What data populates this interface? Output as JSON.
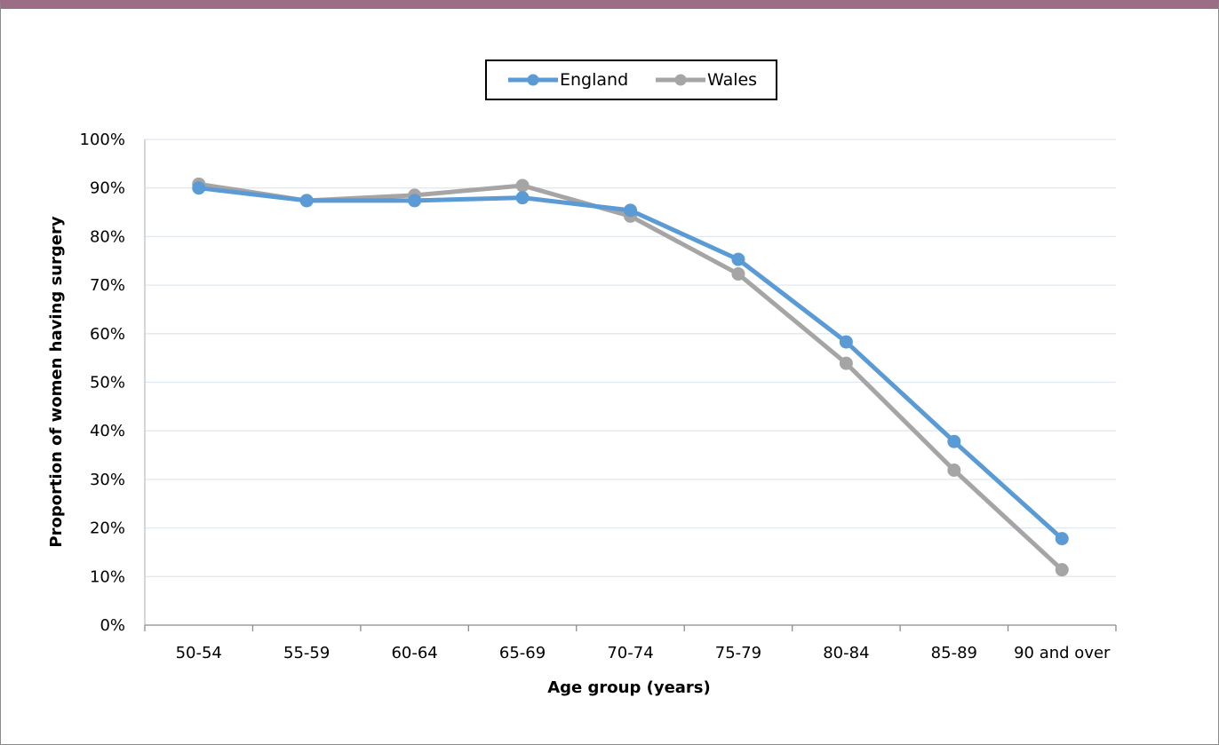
{
  "chart_data": {
    "type": "line",
    "xlabel": "Age group (years)",
    "ylabel": "Proportion of women having surgery",
    "ylim": [
      0,
      100
    ],
    "yticks": [
      "0%",
      "10%",
      "20%",
      "30%",
      "40%",
      "50%",
      "60%",
      "70%",
      "80%",
      "90%",
      "100%"
    ],
    "categories": [
      "50-54",
      "55-59",
      "60-64",
      "65-69",
      "70-74",
      "75-79",
      "80-84",
      "85-89",
      "90 and over"
    ],
    "grid": true,
    "legend_position": "top",
    "series": [
      {
        "name": "England",
        "color": "#5b9bd5",
        "values": [
          90.0,
          87.4,
          87.4,
          88.0,
          85.4,
          75.3,
          58.3,
          37.8,
          17.8
        ]
      },
      {
        "name": "Wales",
        "color": "#a5a5a5",
        "values": [
          90.8,
          87.4,
          88.5,
          90.5,
          84.2,
          72.3,
          53.9,
          31.9,
          11.4
        ]
      }
    ]
  }
}
